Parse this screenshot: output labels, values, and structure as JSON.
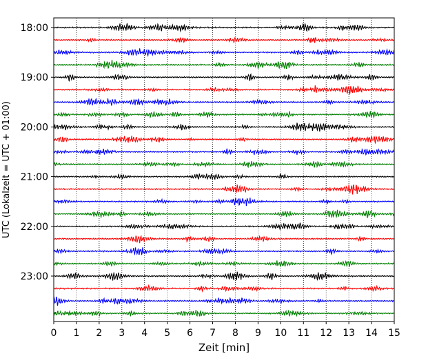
{
  "chart_data": {
    "type": "line",
    "title": "",
    "xlabel": "Zeit  [min]",
    "ylabel": "UTC (Lokalzeit = UTC + 01:00)",
    "xlim": [
      0,
      15
    ],
    "x_ticks": [
      "0",
      "1",
      "2",
      "3",
      "4",
      "5",
      "6",
      "7",
      "8",
      "9",
      "10",
      "11",
      "12",
      "13",
      "14",
      "15"
    ],
    "y_tick_labels": [
      "18:00",
      "19:00",
      "20:00",
      "21:00",
      "22:00",
      "23:00"
    ],
    "trace_start_hour": 18,
    "trace_minutes_per_row": 15,
    "trace_count": 24,
    "trace_colors": [
      "#000000",
      "#ff0000",
      "#0000ff",
      "#008000"
    ],
    "vertical_grid": "dotted",
    "legend": "none"
  }
}
